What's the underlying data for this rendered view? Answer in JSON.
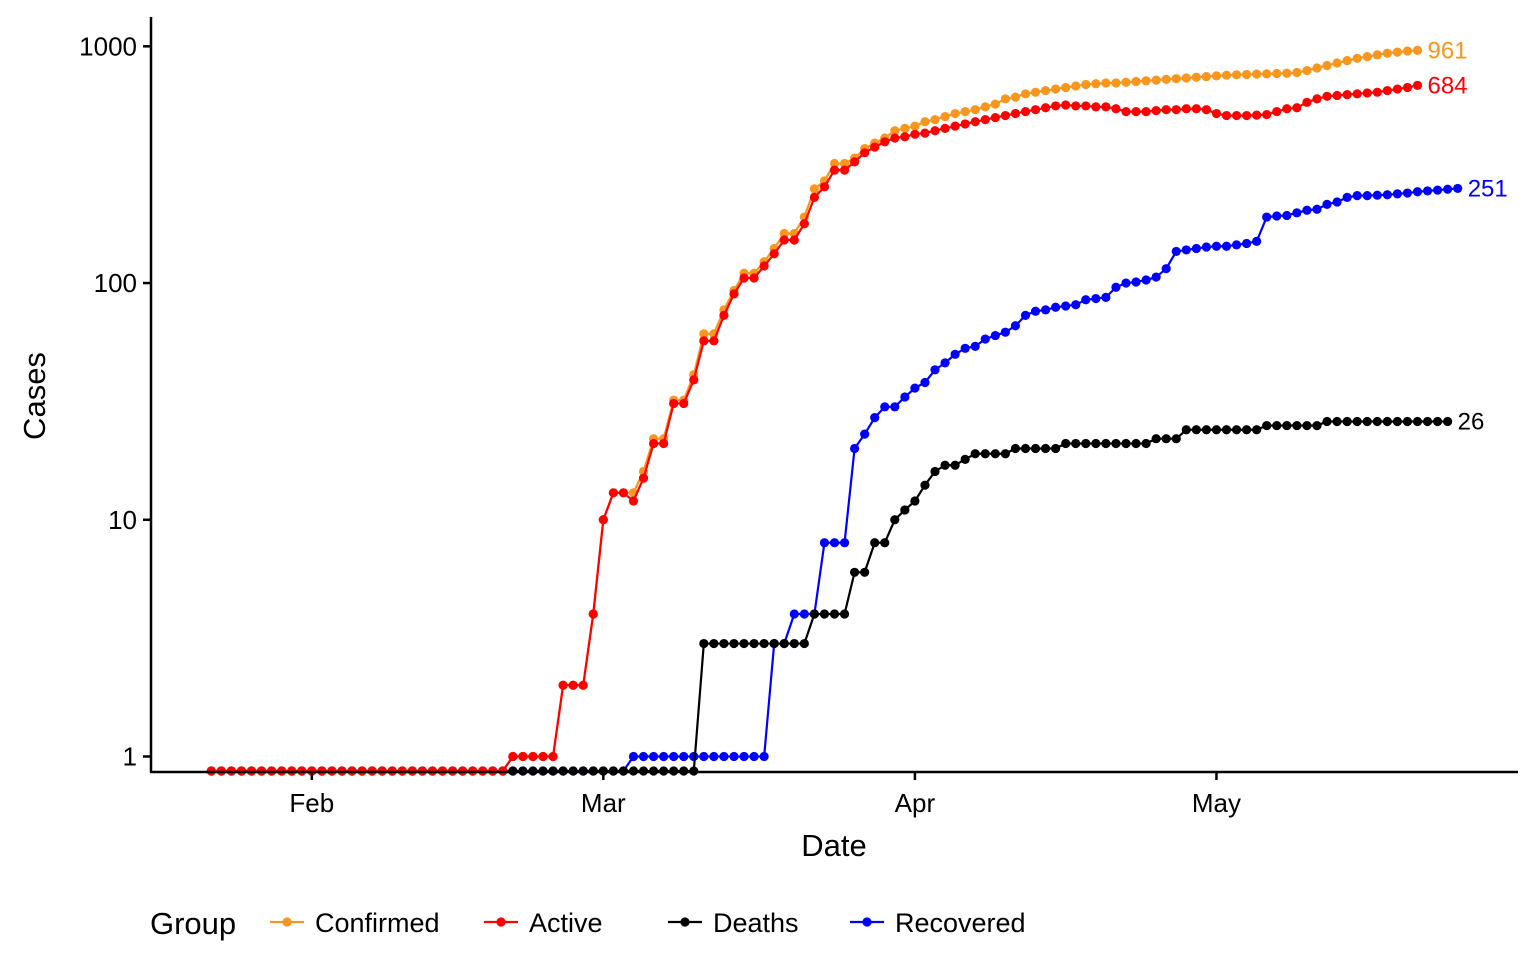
{
  "chart_data": {
    "type": "line",
    "title": "",
    "xlabel": "Date",
    "ylabel": "Cases",
    "y_scale": "log10",
    "ylim": [
      0.86,
      1330
    ],
    "xlim": [
      "2020-01-16",
      "2020-05-31"
    ],
    "y_ticks": [
      {
        "value": 1,
        "label": "1"
      },
      {
        "value": 10,
        "label": "10"
      },
      {
        "value": 100,
        "label": "100"
      },
      {
        "value": 1000,
        "label": "1000"
      }
    ],
    "x_ticks": [
      {
        "value": "2020-02-01",
        "label": "Feb"
      },
      {
        "value": "2020-03-01",
        "label": "Mar"
      },
      {
        "value": "2020-04-01",
        "label": "Apr"
      },
      {
        "value": "2020-05-01",
        "label": "May"
      }
    ],
    "grid": false,
    "legend": {
      "title": "Group",
      "position": "bottom"
    },
    "x_start": "2020-01-22",
    "series": [
      {
        "name": "Confirmed",
        "color": "#F8961E",
        "end_label": "961",
        "values": [
          0,
          0,
          0,
          0,
          0,
          0,
          0,
          0,
          0,
          0,
          0,
          0,
          0,
          0,
          0,
          0,
          0,
          0,
          0,
          0,
          0,
          0,
          0,
          0,
          0,
          0,
          0,
          0,
          0,
          0,
          1,
          1,
          1,
          1,
          1,
          2,
          2,
          2,
          4,
          10,
          13,
          13,
          13,
          16,
          22,
          22,
          32,
          32,
          41,
          61,
          61,
          77,
          93,
          110,
          110,
          123,
          140,
          162,
          162,
          190,
          250,
          270,
          320,
          320,
          337,
          370,
          390,
          410,
          440,
          450,
          460,
          480,
          490,
          505,
          520,
          530,
          540,
          555,
          570,
          600,
          610,
          630,
          640,
          650,
          660,
          670,
          680,
          690,
          695,
          700,
          700,
          705,
          710,
          715,
          720,
          725,
          730,
          735,
          740,
          745,
          750,
          755,
          758,
          760,
          763,
          765,
          768,
          770,
          775,
          790,
          810,
          830,
          850,
          870,
          890,
          905,
          920,
          935,
          945,
          955,
          961
        ]
      },
      {
        "name": "Active",
        "color": "#FF0000",
        "end_label": "684",
        "values": [
          0,
          0,
          0,
          0,
          0,
          0,
          0,
          0,
          0,
          0,
          0,
          0,
          0,
          0,
          0,
          0,
          0,
          0,
          0,
          0,
          0,
          0,
          0,
          0,
          0,
          0,
          0,
          0,
          0,
          0,
          1,
          1,
          1,
          1,
          1,
          2,
          2,
          2,
          4,
          10,
          13,
          13,
          12,
          15,
          21,
          21,
          31,
          31,
          39,
          57,
          57,
          73,
          90,
          105,
          105,
          118,
          133,
          152,
          152,
          178,
          230,
          255,
          300,
          300,
          325,
          355,
          375,
          395,
          410,
          415,
          425,
          430,
          440,
          450,
          460,
          470,
          480,
          490,
          500,
          510,
          520,
          530,
          540,
          550,
          560,
          565,
          560,
          560,
          555,
          555,
          545,
          530,
          530,
          530,
          535,
          540,
          540,
          545,
          545,
          540,
          520,
          510,
          510,
          510,
          512,
          515,
          530,
          545,
          550,
          580,
          600,
          615,
          620,
          625,
          630,
          635,
          640,
          650,
          660,
          670,
          684
        ]
      },
      {
        "name": "Deaths",
        "color": "#000000",
        "end_label": "26",
        "values": [
          0,
          0,
          0,
          0,
          0,
          0,
          0,
          0,
          0,
          0,
          0,
          0,
          0,
          0,
          0,
          0,
          0,
          0,
          0,
          0,
          0,
          0,
          0,
          0,
          0,
          0,
          0,
          0,
          0,
          0,
          0,
          0,
          0,
          0,
          0,
          0,
          0,
          0,
          0,
          0,
          0,
          0,
          0,
          0,
          0,
          0,
          0,
          0,
          0,
          3,
          3,
          3,
          3,
          3,
          3,
          3,
          3,
          3,
          3,
          3,
          4,
          4,
          4,
          4,
          6,
          6,
          8,
          8,
          10,
          11,
          12,
          14,
          16,
          17,
          17,
          18,
          19,
          19,
          19,
          19,
          20,
          20,
          20,
          20,
          20,
          21,
          21,
          21,
          21,
          21,
          21,
          21,
          21,
          21,
          22,
          22,
          22,
          24,
          24,
          24,
          24,
          24,
          24,
          24,
          24,
          25,
          25,
          25,
          25,
          25,
          25,
          26,
          26,
          26,
          26,
          26,
          26,
          26,
          26,
          26,
          26,
          26,
          26,
          26
        ]
      },
      {
        "name": "Recovered",
        "color": "#0000FF",
        "end_label": "251",
        "values": [
          0,
          0,
          0,
          0,
          0,
          0,
          0,
          0,
          0,
          0,
          0,
          0,
          0,
          0,
          0,
          0,
          0,
          0,
          0,
          0,
          0,
          0,
          0,
          0,
          0,
          0,
          0,
          0,
          0,
          0,
          0,
          0,
          0,
          0,
          0,
          0,
          0,
          0,
          0,
          0,
          0,
          0,
          1,
          1,
          1,
          1,
          1,
          1,
          1,
          1,
          1,
          1,
          1,
          1,
          1,
          1,
          3,
          3,
          4,
          4,
          4,
          8,
          8,
          8,
          20,
          23,
          27,
          30,
          30,
          33,
          36,
          38,
          43,
          46,
          50,
          53,
          54,
          58,
          60,
          62,
          66,
          73,
          76,
          77,
          79,
          80,
          81,
          85,
          86,
          87,
          96,
          100,
          101,
          103,
          106,
          115,
          136,
          138,
          140,
          142,
          143,
          143,
          145,
          147,
          150,
          190,
          192,
          193,
          198,
          203,
          205,
          215,
          220,
          230,
          234,
          234,
          235,
          236,
          238,
          240,
          243,
          245,
          247,
          249,
          251
        ]
      }
    ]
  }
}
